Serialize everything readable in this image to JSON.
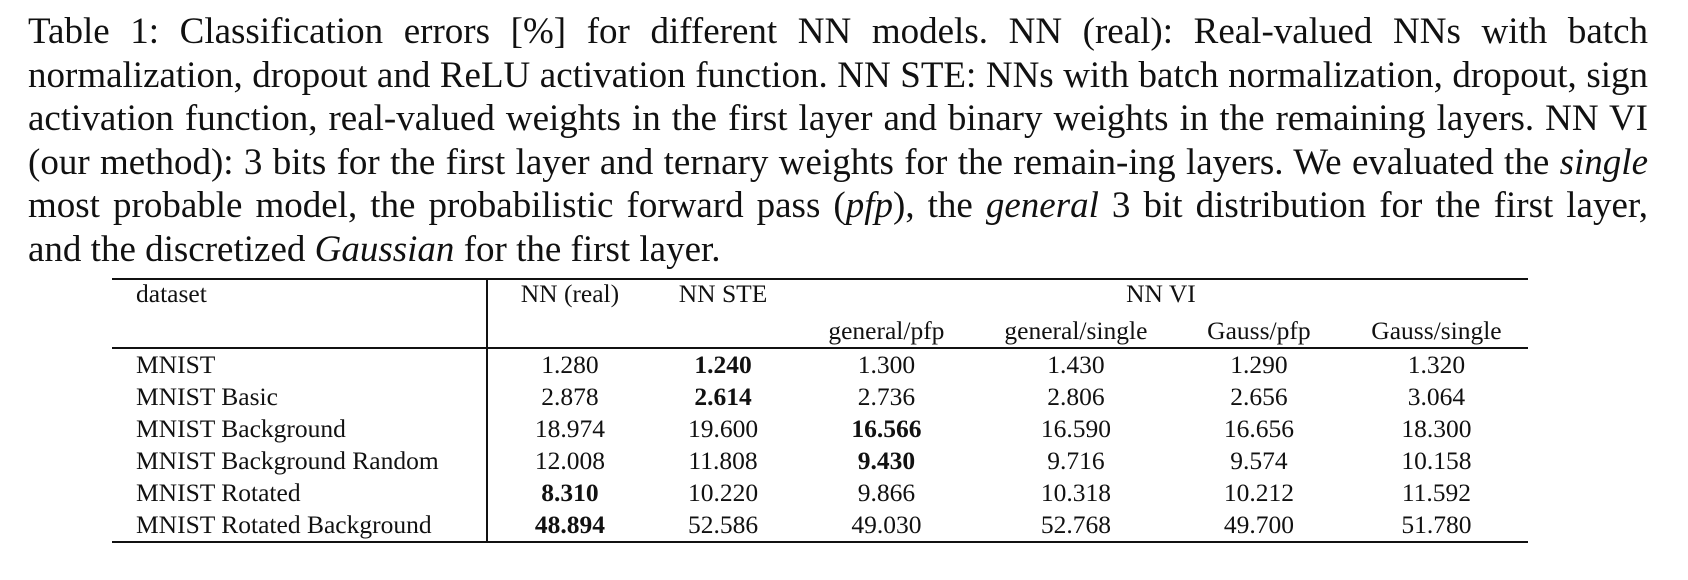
{
  "caption": {
    "part1": "Table 1: Classification errors [%] for different NN models. NN (real): Real-valued NNs with batch normalization, dropout and ReLU activation function.  NN STE: NNs with batch normalization, dropout, sign activation function, real-valued weights in the first layer and binary weights in the remaining layers. NN VI (our method): 3 bits for the first layer and ternary weights for the remain-ing layers.  We evaluated the ",
    "italic1": "single",
    "part2": " most probable model, the probabilistic forward pass (",
    "italic2": "pfp",
    "part3": "), the ",
    "italic3": "general",
    "part4": " 3 bit distribution for the first layer, and the discretized ",
    "italic4": "Gaussian",
    "part5": " for the first layer."
  },
  "table": {
    "header": {
      "dataset": "dataset",
      "nn_real": "NN (real)",
      "nn_ste": "NN STE",
      "nn_vi": "NN VI",
      "sub": [
        "general/pfp",
        "general/single",
        "Gauss/pfp",
        "Gauss/single"
      ]
    },
    "rows": [
      {
        "dataset": "MNIST",
        "values": [
          "1.280",
          "1.240",
          "1.300",
          "1.430",
          "1.290",
          "1.320"
        ],
        "bold_index": 1
      },
      {
        "dataset": "MNIST Basic",
        "values": [
          "2.878",
          "2.614",
          "2.736",
          "2.806",
          "2.656",
          "3.064"
        ],
        "bold_index": 1
      },
      {
        "dataset": "MNIST Background",
        "values": [
          "18.974",
          "19.600",
          "16.566",
          "16.590",
          "16.656",
          "18.300"
        ],
        "bold_index": 2
      },
      {
        "dataset": "MNIST Background Random",
        "values": [
          "12.008",
          "11.808",
          "9.430",
          "9.716",
          "9.574",
          "10.158"
        ],
        "bold_index": 2
      },
      {
        "dataset": "MNIST Rotated",
        "values": [
          "8.310",
          "10.220",
          "9.866",
          "10.318",
          "10.212",
          "11.592"
        ],
        "bold_index": 0
      },
      {
        "dataset": "MNIST Rotated Background",
        "values": [
          "48.894",
          "52.586",
          "49.030",
          "52.768",
          "49.700",
          "51.780"
        ],
        "bold_index": 0
      }
    ]
  }
}
